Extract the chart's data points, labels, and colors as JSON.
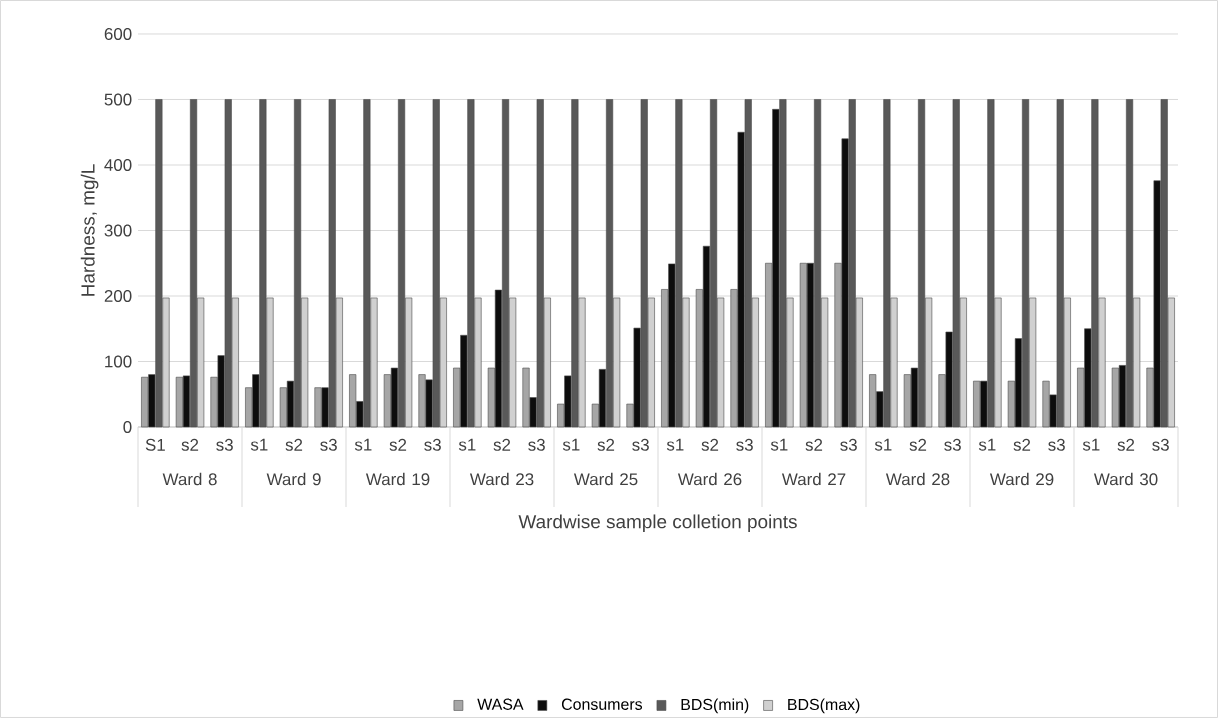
{
  "chart_data": {
    "type": "bar",
    "xlabel": "Wardwise sample colletion points",
    "ylabel": "Hardness, mg/L",
    "categories": [
      "S1",
      "s2",
      "s3",
      "s1",
      "s2",
      "s3",
      "s1",
      "s2",
      "s3",
      "s1",
      "s2",
      "s3",
      "s1",
      "s2",
      "s3",
      "s1",
      "s2",
      "s3",
      "s1",
      "s2",
      "s3",
      "s1",
      "s2",
      "s3",
      "s1",
      "s2",
      "s3",
      "s1",
      "s2",
      "s3"
    ],
    "annotations": [
      "Ward 8",
      "Ward 9",
      "Ward 19",
      "Ward 23",
      "Ward 25",
      "Ward 26",
      "Ward 27",
      "Ward 28",
      "Ward 29",
      "Ward 30"
    ],
    "series": [
      {
        "name": "WASA",
        "color": "#a6a6a6",
        "values": [
          76,
          76,
          76,
          60,
          60,
          60,
          80,
          80,
          80,
          90,
          90,
          90,
          35,
          35,
          35,
          210,
          210,
          210,
          250,
          250,
          250,
          80,
          80,
          80,
          70,
          70,
          70,
          90,
          90,
          90
        ]
      },
      {
        "name": "Consumers",
        "color": "#0d0d0d",
        "values": [
          80,
          78,
          109,
          80,
          70,
          60,
          39,
          90,
          72,
          140,
          209,
          45,
          78,
          88,
          151,
          249,
          276,
          450,
          485,
          250,
          440,
          54,
          90,
          145,
          70,
          135,
          49,
          150,
          94,
          376
        ]
      },
      {
        "name": "BDS(min)",
        "color": "#595959",
        "values": [
          500,
          500,
          500,
          500,
          500,
          500,
          500,
          500,
          500,
          500,
          500,
          500,
          500,
          500,
          500,
          500,
          500,
          500,
          500,
          500,
          500,
          500,
          500,
          500,
          500,
          500,
          500,
          500,
          500,
          500
        ]
      },
      {
        "name": "BDS(max)",
        "color": "#d0d0d0",
        "values": [
          197,
          197,
          197,
          197,
          197,
          197,
          197,
          197,
          197,
          197,
          197,
          197,
          197,
          197,
          197,
          197,
          197,
          197,
          197,
          197,
          197,
          197,
          197,
          197,
          197,
          197,
          197,
          197,
          197,
          197
        ]
      }
    ],
    "ylim": [
      0,
      600
    ],
    "yticks": [
      0,
      100,
      200,
      300,
      400,
      500,
      600
    ],
    "grid": "y",
    "legend": "bottom"
  }
}
